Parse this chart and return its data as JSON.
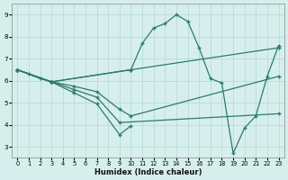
{
  "xlabel": "Humidex (Indice chaleur)",
  "bg_color": "#d6efed",
  "line_color": "#2d7a6e",
  "grid_color": "#b8dbd8",
  "xlim": [
    -0.5,
    23.5
  ],
  "ylim": [
    2.5,
    9.5
  ],
  "xticks": [
    0,
    1,
    2,
    3,
    4,
    5,
    6,
    7,
    8,
    9,
    10,
    11,
    12,
    13,
    14,
    15,
    16,
    17,
    18,
    19,
    20,
    21,
    22,
    23
  ],
  "yticks": [
    3,
    4,
    5,
    6,
    7,
    8,
    9
  ],
  "lines": [
    {
      "x": [
        0,
        1,
        2,
        3,
        10,
        11,
        12,
        13,
        14,
        15,
        16,
        17,
        18,
        19,
        20,
        21,
        22,
        23
      ],
      "y": [
        6.5,
        6.3,
        6.1,
        5.95,
        6.5,
        7.7,
        8.4,
        8.6,
        9.0,
        8.7,
        7.5,
        6.1,
        5.9,
        2.7,
        3.85,
        4.4,
        6.2,
        7.6
      ]
    },
    {
      "x": [
        0,
        3,
        10,
        23
      ],
      "y": [
        6.5,
        5.95,
        6.5,
        7.5
      ]
    },
    {
      "x": [
        0,
        3,
        5,
        7,
        9,
        10,
        23
      ],
      "y": [
        6.5,
        5.95,
        5.75,
        5.5,
        4.7,
        4.4,
        6.2
      ]
    },
    {
      "x": [
        0,
        3,
        5,
        7,
        9,
        23
      ],
      "y": [
        6.5,
        5.95,
        5.6,
        5.25,
        4.1,
        4.5
      ]
    },
    {
      "x": [
        0,
        3,
        5,
        7,
        9,
        10
      ],
      "y": [
        6.5,
        5.95,
        5.45,
        4.95,
        3.55,
        3.95
      ]
    }
  ]
}
